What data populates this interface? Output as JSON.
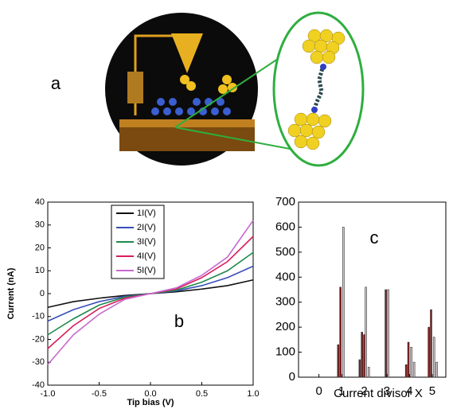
{
  "panel_a": {
    "label": "a"
  },
  "chart_data": [
    {
      "type": "line",
      "annotation": "b",
      "xlabel": "Tip bias (V)",
      "ylabel": "Current (nA)",
      "x": [
        -1,
        -0.75,
        -0.5,
        -0.25,
        0,
        0.25,
        0.5,
        0.75,
        1
      ],
      "series": [
        {
          "name": "1I(V)",
          "color": "#111111",
          "values": [
            -6,
            -3.5,
            -2,
            -0.8,
            0,
            0.8,
            2,
            3.5,
            6
          ]
        },
        {
          "name": "2I(V)",
          "color": "#3a4fb8",
          "values": [
            -12,
            -7,
            -3.5,
            -1.2,
            0,
            1.2,
            3.5,
            7,
            12
          ]
        },
        {
          "name": "3I(V)",
          "color": "#1f8a4c",
          "values": [
            -18,
            -11,
            -5,
            -1.5,
            0,
            1.5,
            5,
            10,
            18
          ]
        },
        {
          "name": "4I(V)",
          "color": "#d81e5b",
          "values": [
            -24,
            -14,
            -6.5,
            -2,
            0,
            2,
            7,
            14,
            25
          ]
        },
        {
          "name": "5I(V)",
          "color": "#c86ad0",
          "values": [
            -31,
            -18,
            -9,
            -2.5,
            0,
            2.5,
            8,
            16,
            32
          ]
        }
      ],
      "xlim": [
        -1,
        1
      ],
      "xticks": [
        {
          "value": -1,
          "label": "-1.0"
        },
        {
          "value": -0.5,
          "label": "-0.5"
        },
        {
          "value": 0,
          "label": "0.0"
        },
        {
          "value": 0.5,
          "label": "0.5"
        },
        {
          "value": 1,
          "label": "1.0"
        }
      ],
      "ylim": [
        -40,
        40
      ],
      "yticks": [
        -40,
        -30,
        -20,
        -10,
        0,
        10,
        20,
        30,
        40
      ]
    },
    {
      "type": "bar",
      "annotation": "c",
      "xlabel": "Current divisor X",
      "series": [
        {
          "color": "#8b1a1a",
          "x": [
            0.85,
            0.95,
            1.8,
            1.9,
            2.0,
            2.95,
            3.85,
            3.95,
            4.85,
            4.95
          ],
          "values": [
            130,
            360,
            70,
            180,
            170,
            350,
            50,
            140,
            200,
            270
          ]
        },
        {
          "color": "#d8c8d0",
          "x": [
            1.08,
            2.07,
            2.2,
            3.06,
            4.08,
            4.2,
            5.08,
            5.2
          ],
          "values": [
            600,
            360,
            40,
            350,
            120,
            60,
            160,
            60
          ]
        }
      ],
      "xlim": [
        -0.9,
        5.6
      ],
      "xticks": [
        0,
        1,
        2,
        3,
        4,
        5
      ],
      "ylim": [
        0,
        700
      ],
      "yticks": [
        0,
        100,
        200,
        300,
        400,
        500,
        600,
        700
      ]
    }
  ]
}
